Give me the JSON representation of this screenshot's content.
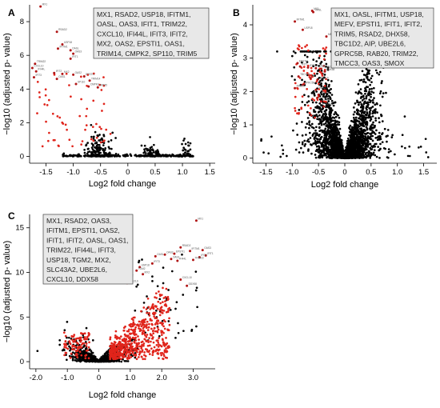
{
  "colors": {
    "insignificant": "#000000",
    "significant": "#e0241b",
    "box_fill": "#e8e8e8",
    "box_stroke": "#444444"
  },
  "chart_data": [
    {
      "panel": "A",
      "type": "scatter",
      "xlabel": "Log2 fold change",
      "ylabel": "−log10 (adjusted p- value)",
      "xlim": [
        -1.8,
        1.6
      ],
      "ylim": [
        -0.4,
        9.0
      ],
      "xticks": [
        "-1.5",
        "-1.0",
        "-0.5",
        "0",
        "0.5",
        "1.0",
        "1.5"
      ],
      "xtick_values": [
        -1.5,
        -1.0,
        -0.5,
        0,
        0.5,
        1.0,
        1.5
      ],
      "yticks": [
        "0",
        "2",
        "4",
        "6",
        "8"
      ],
      "ytick_values": [
        0,
        2,
        4,
        6,
        8
      ],
      "gene_box": [
        "MX1, RSAD2, USP18, IFITM1,",
        "OASL, OAS3, IFIT1, TRIM22,",
        "CXCL10, IFI44L, IFIT3, IFIT2,",
        "MX2, OAS2, EPSTI1, OAS1,",
        "TRIM14, CMPK2, SP110, TRIM5"
      ],
      "labeled_points": [
        {
          "gene": "MX1",
          "x": -1.6,
          "y": 8.9
        },
        {
          "gene": "RSAD2",
          "x": -1.3,
          "y": 7.4
        },
        {
          "gene": "USP18",
          "x": -1.2,
          "y": 6.65
        },
        {
          "gene": "IFITM1",
          "x": -1.28,
          "y": 6.4
        },
        {
          "gene": "OASL",
          "x": -1.05,
          "y": 6.3
        },
        {
          "gene": "OAS3",
          "x": -1.0,
          "y": 6.1
        },
        {
          "gene": "IFIT1",
          "x": -1.05,
          "y": 5.8
        },
        {
          "gene": "TRIM22",
          "x": -1.7,
          "y": 5.5
        },
        {
          "gene": "CXCL10",
          "x": -1.75,
          "y": 5.25
        },
        {
          "gene": "IFI44L",
          "x": -1.68,
          "y": 5.05
        },
        {
          "gene": "IFIT3",
          "x": -1.72,
          "y": 4.7
        },
        {
          "gene": "IFIT2",
          "x": -1.35,
          "y": 4.95
        },
        {
          "gene": "MX2",
          "x": -1.2,
          "y": 4.9
        },
        {
          "gene": "OAS2",
          "x": -1.0,
          "y": 4.85
        },
        {
          "gene": "EPSTI1",
          "x": -0.8,
          "y": 4.75
        },
        {
          "gene": "OAS1",
          "x": -1.3,
          "y": 4.6
        },
        {
          "gene": "TRIM14",
          "x": -0.7,
          "y": 4.5
        },
        {
          "gene": "CMPK2",
          "x": -0.72,
          "y": 4.15
        },
        {
          "gene": "SP110",
          "x": -0.95,
          "y": 4.3
        },
        {
          "gene": "TRIM5",
          "x": -0.55,
          "y": 4.1
        }
      ]
    },
    {
      "panel": "B",
      "type": "scatter",
      "xlabel": "Log2 fold change",
      "ylabel": "−log10 (adjusted p- value)",
      "xlim": [
        -1.75,
        1.75
      ],
      "ylim": [
        -0.15,
        4.6
      ],
      "xticks": [
        "-1.5",
        "-1.0",
        "-0.5",
        "0",
        "0.5",
        "1.0",
        "1.5"
      ],
      "xtick_values": [
        -1.5,
        -1.0,
        -0.5,
        0,
        0.5,
        1.0,
        1.5
      ],
      "yticks": [
        "0",
        "1",
        "2",
        "3",
        "4"
      ],
      "ytick_values": [
        0,
        1,
        2,
        3,
        4
      ],
      "gene_box": [
        "MX1, OASL, IFITM1, USP18,",
        "MEFV, EPSTI1, IFIT1, IFIT2,",
        "TRIM5, RSAD2, DHX58,",
        "TBC1D2, AIP, UBE2L6,",
        "GPRC5B, RAB20, TRIM22,",
        "TMCC3, OAS3, SMOX"
      ],
      "labeled_points": [
        {
          "gene": "MX1",
          "x": -0.62,
          "y": 4.42
        },
        {
          "gene": "OASL",
          "x": -0.6,
          "y": 4.38
        },
        {
          "gene": "IFITM1",
          "x": -0.95,
          "y": 4.1
        },
        {
          "gene": "USP18",
          "x": -0.8,
          "y": 3.85
        },
        {
          "gene": "MEFV",
          "x": -0.35,
          "y": 3.65
        },
        {
          "gene": "EPSTI1",
          "x": -0.9,
          "y": 2.85
        },
        {
          "gene": "IFIT1",
          "x": -0.85,
          "y": 2.75
        },
        {
          "gene": "IFIT2",
          "x": -0.7,
          "y": 2.72
        },
        {
          "gene": "TRIM5",
          "x": -0.55,
          "y": 2.7
        },
        {
          "gene": "RSAD2",
          "x": -0.45,
          "y": 2.68
        },
        {
          "gene": "DHX58",
          "x": -0.38,
          "y": 2.6
        },
        {
          "gene": "TBC1D2",
          "x": -0.88,
          "y": 2.45
        },
        {
          "gene": "AIP",
          "x": -0.65,
          "y": 2.4
        },
        {
          "gene": "UBE2L6",
          "x": -0.52,
          "y": 2.35
        },
        {
          "gene": "GPRC5B",
          "x": -0.8,
          "y": 2.2
        },
        {
          "gene": "RAB20",
          "x": -0.95,
          "y": 2.1
        },
        {
          "gene": "TRIM22",
          "x": -0.55,
          "y": 2.05
        },
        {
          "gene": "TMCC3",
          "x": -0.5,
          "y": 1.9
        },
        {
          "gene": "OAS3",
          "x": -0.45,
          "y": 1.7
        },
        {
          "gene": "SMOX",
          "x": -0.4,
          "y": 1.55
        }
      ]
    },
    {
      "panel": "C",
      "type": "scatter",
      "xlabel": "Log2 fold change",
      "ylabel": "−log10 (adjusted p- value)",
      "xlim": [
        -2.2,
        3.7
      ],
      "ylim": [
        -0.8,
        16.5
      ],
      "xticks": [
        "-2.0",
        "-1.0",
        "0",
        "1.0",
        "2.0",
        "3.0"
      ],
      "xtick_values": [
        -2.0,
        -1.0,
        0,
        1.0,
        2.0,
        3.0
      ],
      "yticks": [
        "0",
        "5",
        "10",
        "15"
      ],
      "ytick_values": [
        0,
        5,
        10,
        15
      ],
      "gene_box": [
        "MX1, RSAD2, OAS3,",
        "IFITM1, EPSTI1, OAS2,",
        "IFIT1, IFIT2, OASL, OAS1,",
        "TRIM22, IFI44L, IFIT3,",
        "USP18, TGM2, MX2,",
        "SLC43A2, UBE2L6,",
        "CXCL10, DDX58"
      ],
      "labeled_points": [
        {
          "gene": "MX1",
          "x": 3.1,
          "y": 15.8
        },
        {
          "gene": "RSAD2",
          "x": 2.6,
          "y": 12.8
        },
        {
          "gene": "OAS3",
          "x": 3.3,
          "y": 12.5
        },
        {
          "gene": "IFITM1",
          "x": 2.9,
          "y": 12.4
        },
        {
          "gene": "EPSTI1",
          "x": 2.4,
          "y": 12.1
        },
        {
          "gene": "OAS2",
          "x": 2.1,
          "y": 12.0
        },
        {
          "gene": "IFIT1",
          "x": 3.4,
          "y": 11.9
        },
        {
          "gene": "IFIT2",
          "x": 3.2,
          "y": 11.7
        },
        {
          "gene": "OASL",
          "x": 1.8,
          "y": 11.8
        },
        {
          "gene": "OAS1",
          "x": 2.3,
          "y": 11.5
        },
        {
          "gene": "TRIM22",
          "x": 3.0,
          "y": 11.4
        },
        {
          "gene": "IFI44L",
          "x": 2.5,
          "y": 11.3
        },
        {
          "gene": "IFIT3",
          "x": 1.7,
          "y": 11.0
        },
        {
          "gene": "USP18",
          "x": 1.3,
          "y": 10.6
        },
        {
          "gene": "TGM2",
          "x": 1.2,
          "y": 10.2
        },
        {
          "gene": "MX2",
          "x": 1.4,
          "y": 9.8
        },
        {
          "gene": "SLC43A2",
          "x": 0.7,
          "y": 9.4
        },
        {
          "gene": "UBE2L6",
          "x": 0.9,
          "y": 8.8
        },
        {
          "gene": "CXCL10",
          "x": 2.6,
          "y": 9.2
        },
        {
          "gene": "DDX58",
          "x": 2.8,
          "y": 8.5
        }
      ]
    }
  ]
}
